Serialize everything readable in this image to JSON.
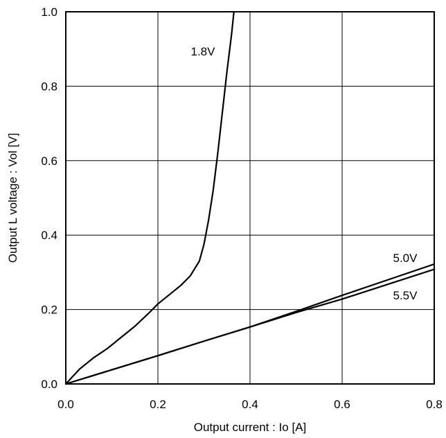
{
  "chart_data": {
    "type": "line",
    "title": "",
    "xlabel": "Output current : Io [A]",
    "ylabel": "Output L voltage : Vol [V]",
    "xlim": [
      0.0,
      0.8
    ],
    "ylim": [
      0.0,
      1.0
    ],
    "x_ticks": [
      "0.0",
      "0.2",
      "0.4",
      "0.6",
      "0.8"
    ],
    "y_ticks": [
      "0.0",
      "0.2",
      "0.4",
      "0.6",
      "0.8",
      "1.0"
    ],
    "grid": true,
    "series": [
      {
        "name": "1.8V",
        "points": [
          [
            0.0,
            0.0
          ],
          [
            0.03,
            0.04
          ],
          [
            0.06,
            0.07
          ],
          [
            0.09,
            0.095
          ],
          [
            0.12,
            0.125
          ],
          [
            0.15,
            0.155
          ],
          [
            0.18,
            0.19
          ],
          [
            0.2,
            0.215
          ],
          [
            0.22,
            0.235
          ],
          [
            0.25,
            0.265
          ],
          [
            0.27,
            0.29
          ],
          [
            0.29,
            0.33
          ],
          [
            0.3,
            0.375
          ],
          [
            0.31,
            0.44
          ],
          [
            0.32,
            0.52
          ],
          [
            0.33,
            0.62
          ],
          [
            0.34,
            0.73
          ],
          [
            0.35,
            0.84
          ],
          [
            0.36,
            0.94
          ],
          [
            0.365,
            1.0
          ]
        ]
      },
      {
        "name": "5.0V",
        "points": [
          [
            0.0,
            0.0
          ],
          [
            0.1,
            0.038
          ],
          [
            0.2,
            0.076
          ],
          [
            0.3,
            0.115
          ],
          [
            0.4,
            0.153
          ],
          [
            0.5,
            0.195
          ],
          [
            0.6,
            0.238
          ],
          [
            0.7,
            0.28
          ],
          [
            0.8,
            0.322
          ]
        ]
      },
      {
        "name": "5.5V",
        "points": [
          [
            0.0,
            0.0
          ],
          [
            0.1,
            0.038
          ],
          [
            0.2,
            0.076
          ],
          [
            0.3,
            0.115
          ],
          [
            0.4,
            0.153
          ],
          [
            0.5,
            0.192
          ],
          [
            0.6,
            0.228
          ],
          [
            0.7,
            0.268
          ],
          [
            0.8,
            0.308
          ]
        ]
      }
    ],
    "annotations": [
      "1.8V",
      "5.0V",
      "5.5V"
    ]
  }
}
